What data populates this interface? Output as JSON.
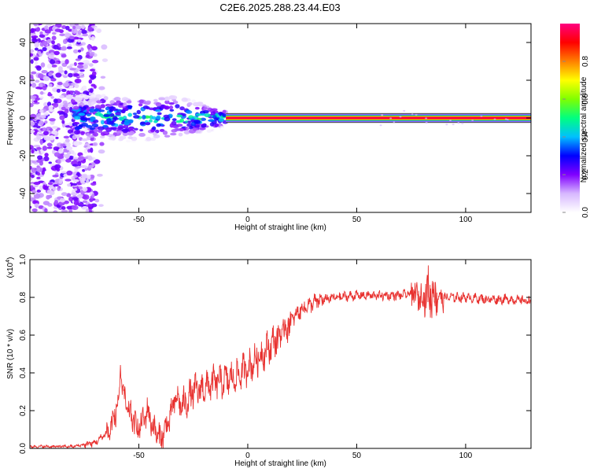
{
  "title": "C2E6.2025.288.23.44.E03",
  "chart_data": [
    {
      "type": "heatmap",
      "xlabel": "Height of straight line (km)",
      "ylabel": "Frequency (Hz)",
      "xlim": [
        -100,
        130
      ],
      "ylim": [
        -50,
        50
      ],
      "xticks": [
        -50,
        0,
        50,
        100
      ],
      "yticks": [
        -40,
        -20,
        0,
        20,
        40
      ],
      "colorbar": {
        "label": "Normalized spectral amplitude",
        "range": [
          0,
          1
        ],
        "ticks": [
          "0.0",
          "0.2",
          "0.4",
          "0.6",
          "0.8"
        ],
        "colors": [
          "#ffffff",
          "#d7b8ff",
          "#8000ff",
          "#0000ff",
          "#00c0ff",
          "#00ff80",
          "#80ff00",
          "#ffff00",
          "#ff8000",
          "#ff0000",
          "#ff0080"
        ]
      },
      "features": [
        {
          "name": "scattered noise",
          "x_range": [
            -100,
            -70
          ],
          "y_range": [
            -50,
            50
          ],
          "amplitude": 0.15
        },
        {
          "name": "broad carrier",
          "x_range": [
            -80,
            -10
          ],
          "y_center": 0,
          "y_halfwidth": 7,
          "amplitude": 0.45
        },
        {
          "name": "narrow carrier",
          "x_range": [
            -10,
            130
          ],
          "y_center": 0,
          "y_halfwidth": 1.5,
          "amplitude": 0.95
        }
      ]
    },
    {
      "type": "line",
      "xlabel": "Height of straight line (km)",
      "ylabel": "SNR (10 * v/v)",
      "y_scale_note": "(x10",
      "y_scale_exp": "4",
      "xlim": [
        -100,
        130
      ],
      "ylim": [
        0,
        1.0
      ],
      "xticks": [
        -50,
        0,
        50,
        100
      ],
      "yticks": [
        "0.0",
        "0.2",
        "0.4",
        "0.6",
        "0.8",
        "1.0"
      ],
      "line_color": "#e8312f",
      "envelope": [
        {
          "x": -100,
          "y": 0.01
        },
        {
          "x": -80,
          "y": 0.01
        },
        {
          "x": -70,
          "y": 0.03
        },
        {
          "x": -63,
          "y": 0.1
        },
        {
          "x": -58,
          "y": 0.3
        },
        {
          "x": -55,
          "y": 0.2
        },
        {
          "x": -50,
          "y": 0.1
        },
        {
          "x": -46,
          "y": 0.2
        },
        {
          "x": -43,
          "y": 0.1
        },
        {
          "x": -40,
          "y": 0.05
        },
        {
          "x": -36,
          "y": 0.15
        },
        {
          "x": -33,
          "y": 0.27
        },
        {
          "x": -30,
          "y": 0.22
        },
        {
          "x": -25,
          "y": 0.3
        },
        {
          "x": -20,
          "y": 0.32
        },
        {
          "x": -15,
          "y": 0.35
        },
        {
          "x": -10,
          "y": 0.36
        },
        {
          "x": -5,
          "y": 0.38
        },
        {
          "x": 0,
          "y": 0.43
        },
        {
          "x": 5,
          "y": 0.48
        },
        {
          "x": 10,
          "y": 0.54
        },
        {
          "x": 15,
          "y": 0.6
        },
        {
          "x": 20,
          "y": 0.68
        },
        {
          "x": 25,
          "y": 0.74
        },
        {
          "x": 30,
          "y": 0.77
        },
        {
          "x": 35,
          "y": 0.79
        },
        {
          "x": 40,
          "y": 0.8
        },
        {
          "x": 50,
          "y": 0.81
        },
        {
          "x": 60,
          "y": 0.81
        },
        {
          "x": 70,
          "y": 0.81
        },
        {
          "x": 75,
          "y": 0.82
        },
        {
          "x": 80,
          "y": 0.8
        },
        {
          "x": 84,
          "y": 0.83
        },
        {
          "x": 88,
          "y": 0.8
        },
        {
          "x": 95,
          "y": 0.8
        },
        {
          "x": 100,
          "y": 0.8
        },
        {
          "x": 110,
          "y": 0.79
        },
        {
          "x": 120,
          "y": 0.79
        },
        {
          "x": 130,
          "y": 0.78
        }
      ]
    }
  ]
}
